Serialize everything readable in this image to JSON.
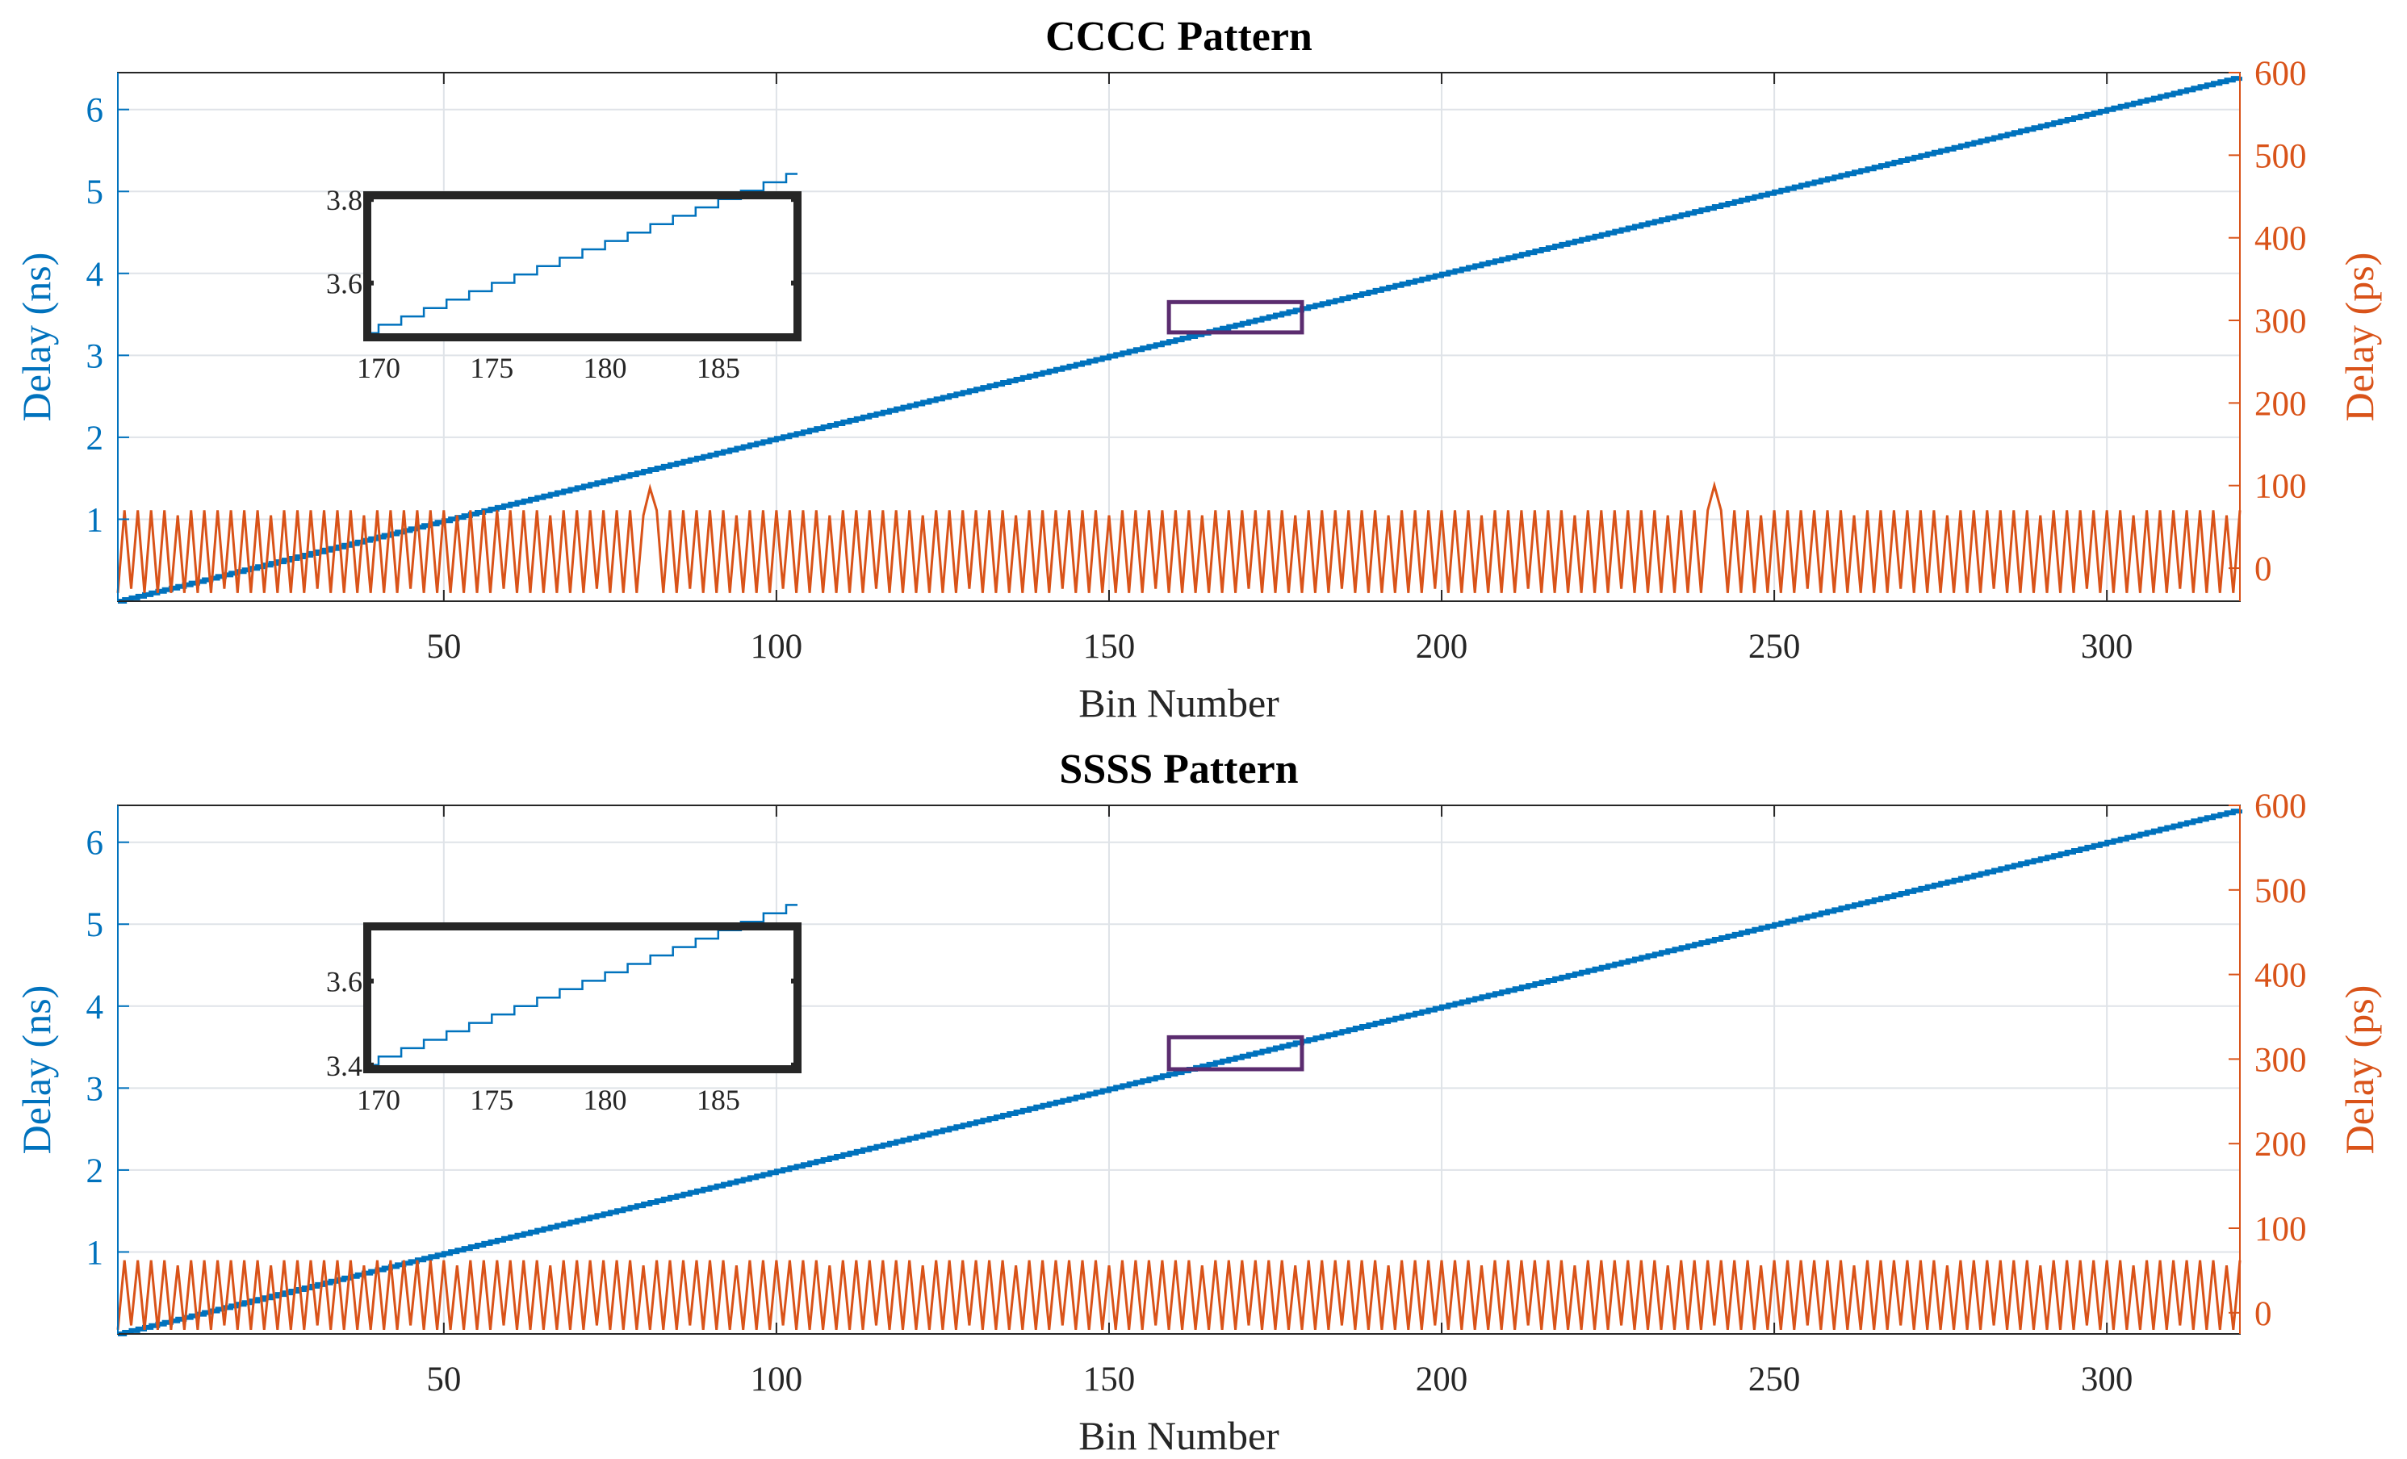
{
  "chart_data": [
    {
      "type": "line",
      "title": "CCCC Pattern",
      "xlabel": "Bin Number",
      "ylabel_left": "Delay (ns)",
      "ylabel_right": "Delay (ps)",
      "xlim": [
        1,
        320
      ],
      "ylim_left": [
        0,
        6.45
      ],
      "ylim_right": [
        -40,
        600
      ],
      "x_ticks": [
        50,
        100,
        150,
        200,
        250,
        300
      ],
      "y_ticks_left": [
        1,
        2,
        3,
        4,
        5,
        6
      ],
      "y_ticks_right": [
        0,
        100,
        200,
        300,
        400,
        500,
        600
      ],
      "grid": true,
      "series": [
        {
          "axis": "left",
          "color": "#0072BD",
          "style": "staircase",
          "x_range": [
            1,
            320
          ],
          "y_range": [
            0,
            6.4
          ],
          "step_ns": 0.02
        },
        {
          "axis": "right",
          "color": "#D95319",
          "style": "sawtooth",
          "low": -30,
          "high": 70,
          "spikes": [
            {
              "x": 81,
              "y": 97
            },
            {
              "x": 241,
              "y": 100
            }
          ]
        }
      ],
      "highlight_box": {
        "x_range": [
          159,
          179
        ],
        "y_range": [
          3.28,
          3.65
        ],
        "color": "#5B2C6F"
      },
      "inset": {
        "xlim": [
          169.5,
          188.5
        ],
        "ylim": [
          3.47,
          3.81
        ],
        "x_ticks": [
          170,
          175,
          180,
          185
        ],
        "y_ticks": [
          3.6,
          3.8
        ],
        "y_tick_labels": [
          "3.6",
          "3.8"
        ]
      }
    },
    {
      "type": "line",
      "title": "SSSS Pattern",
      "xlabel": "Bin Number",
      "ylabel_left": "Delay (ns)",
      "ylabel_right": "Delay (ps)",
      "xlim": [
        1,
        320
      ],
      "ylim_left": [
        0,
        6.45
      ],
      "ylim_right": [
        -25,
        600
      ],
      "x_ticks": [
        50,
        100,
        150,
        200,
        250,
        300
      ],
      "y_ticks_left": [
        1,
        2,
        3,
        4,
        5,
        6
      ],
      "y_ticks_right": [
        0,
        100,
        200,
        300,
        400,
        500,
        600
      ],
      "grid": true,
      "series": [
        {
          "axis": "left",
          "color": "#0072BD",
          "style": "staircase",
          "x_range": [
            1,
            320
          ],
          "y_range": [
            0,
            6.4
          ],
          "step_ns": 0.02
        },
        {
          "axis": "right",
          "color": "#D95319",
          "style": "sawtooth",
          "low": -20,
          "high": 62,
          "spikes": []
        }
      ],
      "highlight_box": {
        "x_range": [
          159,
          179
        ],
        "y_range": [
          3.23,
          3.62
        ],
        "color": "#5B2C6F"
      },
      "inset": {
        "xlim": [
          169.5,
          188.5
        ],
        "ylim": [
          3.39,
          3.73
        ],
        "x_ticks": [
          170,
          175,
          180,
          185
        ],
        "y_ticks": [
          3.4,
          3.6
        ],
        "y_tick_labels": [
          "3.4",
          "3.6"
        ]
      }
    }
  ]
}
